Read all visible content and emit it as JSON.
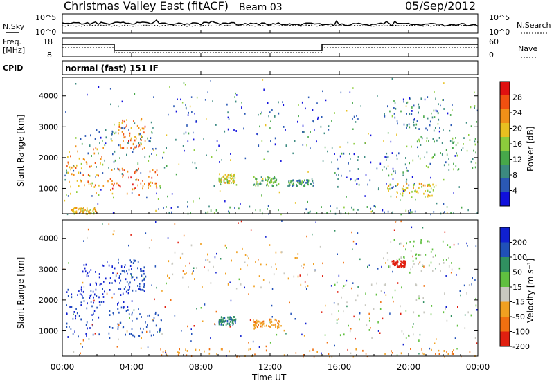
{
  "header": {
    "station": "Christmas Valley East (fitACF)",
    "beam": "Beam 03",
    "date": "05/Sep/2012"
  },
  "noise_panel": {
    "left_label": "N.Sky",
    "right_label": "N.Search",
    "left_ticks": [
      "10^5",
      "10^0"
    ],
    "right_ticks": [
      "10^5",
      "10^0"
    ]
  },
  "freq_panel": {
    "left_label_1": "Freq.",
    "left_label_2": "[MHz]",
    "right_label": "Nave",
    "left_ticks": [
      "18",
      "8"
    ],
    "right_ticks": [
      "60",
      "0"
    ]
  },
  "cpid_panel": {
    "label": "CPID",
    "mode": "normal (fast) 151 IF"
  },
  "colors": {
    "power": [
      "#1010dd",
      "#2a58b5",
      "#3c8a80",
      "#47a84a",
      "#8ccc3c",
      "#e8c020",
      "#f09018",
      "#f05010",
      "#e01010"
    ],
    "velocity": [
      "#1020d0",
      "#2050b8",
      "#309060",
      "#60c040",
      "#c8c8c0",
      "#f0a020",
      "#f07010",
      "#e02010"
    ]
  },
  "chart_data": [
    {
      "type": "heatmap",
      "name": "power",
      "ylabel": "Slant Range [km]",
      "ylim": [
        180,
        4600
      ],
      "yticks": [
        1000,
        2000,
        3000,
        4000
      ],
      "xlim_hours": [
        0,
        24
      ],
      "colorbar_label": "Power [dB]",
      "colorbar_ticks": [
        "4",
        "8",
        "12",
        "16",
        "20",
        "24",
        "28"
      ],
      "clim": [
        0,
        32
      ],
      "features": [
        {
          "t0": 0.2,
          "t1": 2.4,
          "r0": 800,
          "r1": 2400,
          "v": 22
        },
        {
          "t0": 2.6,
          "t1": 5.6,
          "r0": 800,
          "r1": 1700,
          "v": 26
        },
        {
          "t0": 3.2,
          "t1": 4.8,
          "r0": 2300,
          "r1": 3300,
          "v": 24
        },
        {
          "t0": 1.0,
          "t1": 6.0,
          "r0": 1500,
          "r1": 3000,
          "v": 8
        },
        {
          "t0": 6.0,
          "t1": 15.0,
          "r0": 2400,
          "r1": 3900,
          "v": 6
        },
        {
          "t0": 9.0,
          "t1": 10.0,
          "r0": 1200,
          "r1": 1500,
          "v": 18
        },
        {
          "t0": 11.0,
          "t1": 12.5,
          "r0": 1100,
          "r1": 1400,
          "v": 14
        },
        {
          "t0": 13.0,
          "t1": 14.5,
          "r0": 1100,
          "r1": 1300,
          "v": 10
        },
        {
          "t0": 15.5,
          "t1": 20.0,
          "r0": 1000,
          "r1": 2200,
          "v": 6
        },
        {
          "t0": 18.5,
          "t1": 21.5,
          "r0": 700,
          "r1": 1200,
          "v": 20
        },
        {
          "t0": 20.0,
          "t1": 24.0,
          "r0": 1600,
          "r1": 2700,
          "v": 12
        },
        {
          "t0": 18.5,
          "t1": 22.5,
          "r0": 2900,
          "r1": 4000,
          "v": 8
        },
        {
          "t0": 5.5,
          "t1": 24.0,
          "r0": 180,
          "r1": 450,
          "v": 10
        },
        {
          "t0": 0.5,
          "t1": 2.0,
          "r0": 200,
          "r1": 400,
          "v": 20
        }
      ]
    },
    {
      "type": "heatmap",
      "name": "velocity",
      "ylabel": "Slant Range [km]",
      "ylim": [
        180,
        4600
      ],
      "yticks": [
        1000,
        2000,
        3000,
        4000
      ],
      "xlabel": "Time UT",
      "xlim_hours": [
        0,
        24
      ],
      "xticks": [
        "00:00",
        "04:00",
        "08:00",
        "12:00",
        "16:00",
        "20:00",
        "00:00"
      ],
      "colorbar_label": "Velocity [m s⁻¹]",
      "colorbar_ticks": [
        "200",
        "100",
        "50",
        "15",
        "-15",
        "-50",
        "-100",
        "-200"
      ],
      "features": [
        {
          "t0": 0.2,
          "t1": 2.4,
          "r0": 800,
          "r1": 2400,
          "v": 150
        },
        {
          "t0": 2.6,
          "t1": 5.8,
          "r0": 800,
          "r1": 1800,
          "v": 120
        },
        {
          "t0": 3.2,
          "t1": 4.8,
          "r0": 2300,
          "r1": 3400,
          "v": 130
        },
        {
          "t0": 1.0,
          "t1": 4.0,
          "r0": 1800,
          "r1": 3200,
          "v": 180
        },
        {
          "t0": 6.0,
          "t1": 15.0,
          "r0": 2400,
          "r1": 3900,
          "v": -40
        },
        {
          "t0": 9.0,
          "t1": 10.0,
          "r0": 1200,
          "r1": 1500,
          "v": 60
        },
        {
          "t0": 11.0,
          "t1": 12.5,
          "r0": 1100,
          "r1": 1400,
          "v": -60
        },
        {
          "t0": 15.5,
          "t1": 24.0,
          "r0": 700,
          "r1": 2600,
          "v": 0
        },
        {
          "t0": 18.5,
          "t1": 22.5,
          "r0": 2900,
          "r1": 4000,
          "v": 0
        },
        {
          "t0": 5.5,
          "t1": 24.0,
          "r0": 180,
          "r1": 450,
          "v": -70
        },
        {
          "t0": 19.0,
          "t1": 19.8,
          "r0": 3100,
          "r1": 3300,
          "v": -220
        }
      ]
    }
  ]
}
